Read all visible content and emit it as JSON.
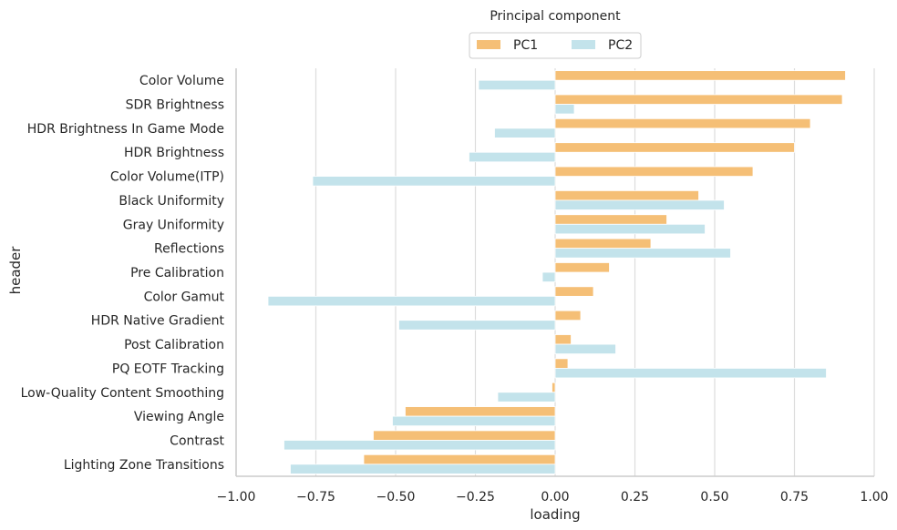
{
  "chart_data": {
    "type": "bar",
    "orientation": "horizontal",
    "xlabel": "loading",
    "ylabel": "header",
    "xlim": [
      -1.0,
      1.0
    ],
    "xticks": [
      -1.0,
      -0.75,
      -0.5,
      -0.25,
      0.0,
      0.25,
      0.5,
      0.75,
      1.0
    ],
    "xtick_labels": [
      "−1.00",
      "−0.75",
      "−0.50",
      "−0.25",
      "0.00",
      "0.25",
      "0.50",
      "0.75",
      "1.00"
    ],
    "grid": "vertical",
    "legend": {
      "title": "Principal component",
      "placement": "top-center",
      "columns": 2
    },
    "categories": [
      "Color Volume",
      "SDR Brightness",
      "HDR Brightness In Game Mode",
      "HDR Brightness",
      "Color Volume(ITP)",
      "Black Uniformity",
      "Gray Uniformity",
      "Reflections",
      "Pre Calibration",
      "Color Gamut",
      "HDR Native Gradient",
      "Post Calibration",
      "PQ EOTF Tracking",
      "Low-Quality Content Smoothing",
      "Viewing Angle",
      "Contrast",
      "Lighting Zone Transitions"
    ],
    "series": [
      {
        "name": "PC1",
        "color": "#f5bf76",
        "values": [
          0.91,
          0.9,
          0.8,
          0.75,
          0.62,
          0.45,
          0.35,
          0.3,
          0.17,
          0.12,
          0.08,
          0.05,
          0.04,
          -0.01,
          -0.47,
          -0.57,
          -0.6
        ]
      },
      {
        "name": "PC2",
        "color": "#c3e3eb",
        "values": [
          -0.24,
          0.06,
          -0.19,
          -0.27,
          -0.76,
          0.53,
          0.47,
          0.55,
          -0.04,
          -0.9,
          -0.49,
          0.19,
          0.85,
          -0.18,
          -0.51,
          -0.85,
          -0.83
        ]
      }
    ]
  }
}
